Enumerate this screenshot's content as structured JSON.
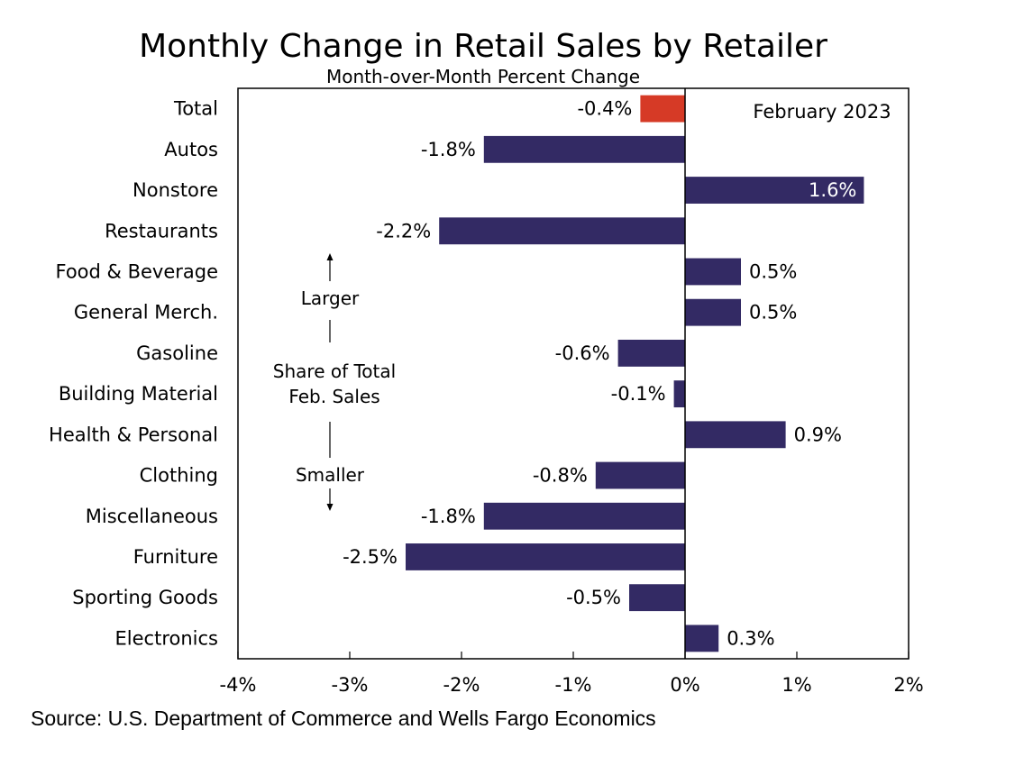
{
  "chart_data": {
    "type": "bar",
    "orientation": "horizontal",
    "title": "Monthly Change in Retail Sales by Retailer",
    "subtitle": "Month-over-Month Percent Change",
    "period_label": "February 2023",
    "categories": [
      "Total",
      "Autos",
      "Nonstore",
      "Restaurants",
      "Food & Beverage",
      "General Merch.",
      "Gasoline",
      "Building Material",
      "Health & Personal",
      "Clothing",
      "Miscellaneous",
      "Furniture",
      "Sporting Goods",
      "Electronics"
    ],
    "values": [
      -0.4,
      -1.8,
      1.6,
      -2.2,
      0.5,
      0.5,
      -0.6,
      -0.1,
      0.9,
      -0.8,
      -1.8,
      -2.5,
      -0.5,
      0.3
    ],
    "value_labels": [
      "-0.4%",
      "-1.8%",
      "1.6%",
      "-2.2%",
      "0.5%",
      "0.5%",
      "-0.6%",
      "-0.1%",
      "0.9%",
      "-0.8%",
      "-1.8%",
      "-2.5%",
      "-0.5%",
      "0.3%"
    ],
    "xlim": [
      -4,
      2
    ],
    "xticks": [
      -4,
      -3,
      -2,
      -1,
      0,
      1,
      2
    ],
    "xtick_labels": [
      "-4%",
      "-3%",
      "-2%",
      "-1%",
      "0%",
      "1%",
      "2%"
    ],
    "grid": false,
    "colors": {
      "highlight": "#d63a26",
      "bar": "#332a64"
    },
    "annotation": {
      "top": "Larger",
      "middle": [
        "Share of Total",
        "Feb. Sales"
      ],
      "bottom": "Smaller"
    },
    "source": "Source: U.S. Department of Commerce and Wells Fargo Economics"
  }
}
